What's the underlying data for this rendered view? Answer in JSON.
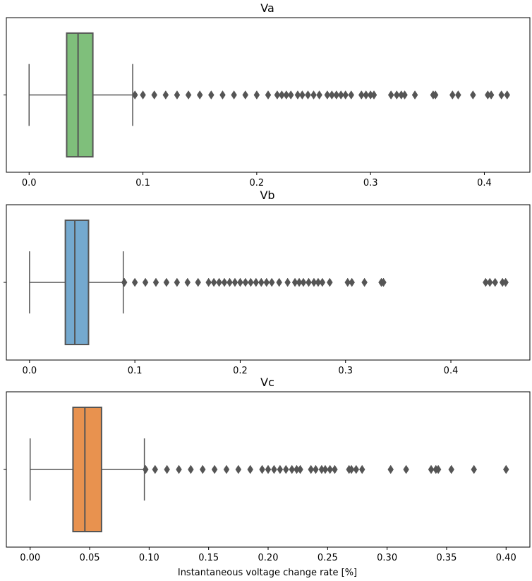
{
  "chart_data": [
    {
      "type": "box",
      "title": "Va",
      "orientation": "horizontal",
      "color": "#7fbf7b",
      "xlim": [
        -0.02,
        0.44
      ],
      "xticks": [
        0.0,
        0.1,
        0.2,
        0.3,
        0.4
      ],
      "xtick_labels": [
        "0.0",
        "0.1",
        "0.2",
        "0.3",
        "0.4"
      ],
      "xlabel": "",
      "box": {
        "whisker_low": 0.0,
        "q1": 0.033,
        "median": 0.043,
        "q3": 0.056,
        "whisker_high": 0.091
      },
      "outliers": [
        0.093,
        0.1,
        0.11,
        0.12,
        0.13,
        0.14,
        0.15,
        0.16,
        0.17,
        0.18,
        0.19,
        0.2,
        0.21,
        0.218,
        0.222,
        0.226,
        0.23,
        0.236,
        0.24,
        0.245,
        0.25,
        0.255,
        0.262,
        0.266,
        0.27,
        0.274,
        0.278,
        0.283,
        0.292,
        0.296,
        0.3,
        0.303,
        0.318,
        0.323,
        0.327,
        0.33,
        0.339,
        0.355,
        0.357,
        0.372,
        0.377,
        0.39,
        0.403,
        0.406,
        0.415,
        0.42
      ]
    },
    {
      "type": "box",
      "title": "Vb",
      "orientation": "horizontal",
      "color": "#74a9cf",
      "xlim": [
        -0.022,
        0.475
      ],
      "xticks": [
        0.0,
        0.1,
        0.2,
        0.3,
        0.4
      ],
      "xtick_labels": [
        "0.0",
        "0.1",
        "0.2",
        "0.3",
        "0.4"
      ],
      "xlabel": "",
      "box": {
        "whisker_low": 0.0,
        "q1": 0.034,
        "median": 0.043,
        "q3": 0.056,
        "whisker_high": 0.089
      },
      "outliers": [
        0.09,
        0.1,
        0.11,
        0.12,
        0.13,
        0.14,
        0.15,
        0.16,
        0.17,
        0.175,
        0.18,
        0.185,
        0.19,
        0.195,
        0.2,
        0.205,
        0.21,
        0.215,
        0.22,
        0.225,
        0.23,
        0.237,
        0.245,
        0.252,
        0.256,
        0.26,
        0.265,
        0.27,
        0.274,
        0.278,
        0.285,
        0.302,
        0.306,
        0.318,
        0.334,
        0.336,
        0.433,
        0.437,
        0.442,
        0.449,
        0.452
      ]
    },
    {
      "type": "box",
      "title": "Vc",
      "orientation": "horizontal",
      "color": "#e8924f",
      "xlim": [
        -0.02,
        0.42
      ],
      "xticks": [
        0.0,
        0.05,
        0.1,
        0.15,
        0.2,
        0.25,
        0.3,
        0.35,
        0.4
      ],
      "xtick_labels": [
        "0.00",
        "0.05",
        "0.10",
        "0.15",
        "0.20",
        "0.25",
        "0.30",
        "0.35",
        "0.40"
      ],
      "xlabel": "Instantaneous voltage change rate [%]",
      "box": {
        "whisker_low": 0.0,
        "q1": 0.036,
        "median": 0.046,
        "q3": 0.06,
        "whisker_high": 0.096
      },
      "outliers": [
        0.097,
        0.105,
        0.115,
        0.125,
        0.135,
        0.145,
        0.155,
        0.165,
        0.175,
        0.185,
        0.195,
        0.2,
        0.205,
        0.21,
        0.215,
        0.22,
        0.224,
        0.227,
        0.236,
        0.24,
        0.245,
        0.248,
        0.252,
        0.256,
        0.268,
        0.27,
        0.274,
        0.279,
        0.303,
        0.316,
        0.337,
        0.341,
        0.343,
        0.354,
        0.373,
        0.4
      ]
    }
  ]
}
